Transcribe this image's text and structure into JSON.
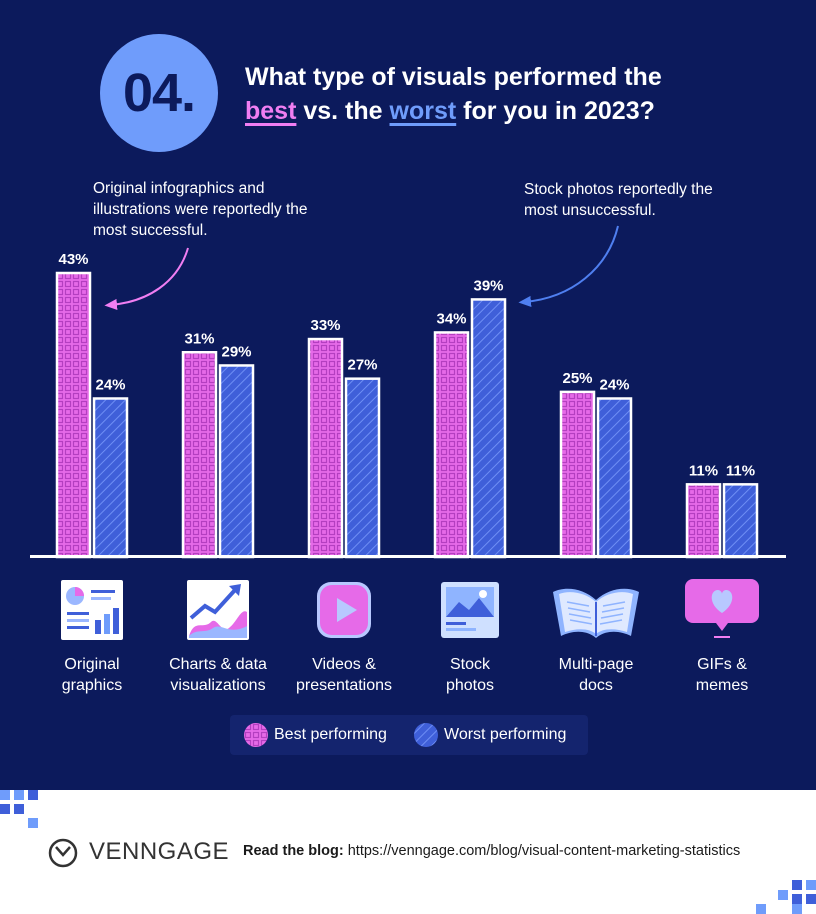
{
  "header": {
    "number": "04.",
    "title_line1": "What type of visuals performed the",
    "title_best": "best",
    "title_mid": "vs. the",
    "title_worst": "worst",
    "title_end": "for you in 2023?"
  },
  "annotations": {
    "left": "Original infographics and illustrations were reportedly the most successful.",
    "right": "Stock photos reportedly the most unsuccessful."
  },
  "colors": {
    "background": "#0c1a5c",
    "best": "#e66ae8",
    "worst": "#3f5fd9",
    "accent_circle": "#6f9cfb"
  },
  "chart_data": {
    "type": "bar",
    "categories": [
      "Original graphics",
      "Charts & data visualizations",
      "Videos & presentations",
      "Stock photos",
      "Multi-page docs",
      "GIFs & memes"
    ],
    "series": [
      {
        "name": "Best performing",
        "values": [
          43,
          31,
          33,
          34,
          25,
          11
        ],
        "labels": [
          "43%",
          "31%",
          "33%",
          "34%",
          "25%",
          "11%"
        ]
      },
      {
        "name": "Worst performing",
        "values": [
          24,
          29,
          27,
          39,
          24,
          11
        ],
        "labels": [
          "24%",
          "29%",
          "27%",
          "39%",
          "24%",
          "11%"
        ]
      }
    ],
    "ylim": [
      0,
      43
    ],
    "unit": "%",
    "grid": false,
    "legend": "bottom-center"
  },
  "categories": [
    {
      "line1": "Original",
      "line2": "graphics",
      "icon": "infographic-icon"
    },
    {
      "line1": "Charts & data",
      "line2": "visualizations",
      "icon": "line-chart-icon"
    },
    {
      "line1": "Videos &",
      "line2": "presentations",
      "icon": "play-video-icon"
    },
    {
      "line1": "Stock",
      "line2": "photos",
      "icon": "landscape-photo-icon"
    },
    {
      "line1": "Multi-page",
      "line2": "docs",
      "icon": "open-book-icon"
    },
    {
      "line1": "GIFs &",
      "line2": "memes",
      "icon": "heart-message-icon"
    }
  ],
  "legend": {
    "best": "Best performing",
    "worst": "Worst performing"
  },
  "footer": {
    "brand": "VENNGAGE",
    "blog_label": "Read the blog:",
    "blog_url": "https://venngage.com/blog/visual-content-marketing-statistics"
  }
}
